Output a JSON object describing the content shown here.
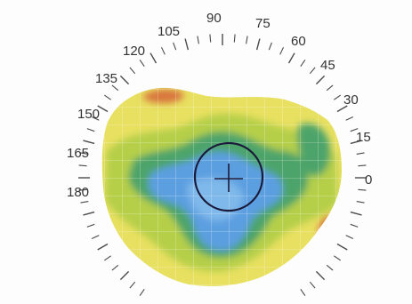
{
  "map": {
    "type": "corneal-topography",
    "colors": {
      "background": "#fdfdfd",
      "yellow": "#e8e060",
      "yellow_green": "#b5cf4a",
      "green": "#4ea46a",
      "blue": "#5b9fe0",
      "blue_light": "#7fb8ea",
      "orange_red": "#d8743c",
      "grid": "#ffffff",
      "reticle": "#1a1a3a",
      "ticks": "#4a4a4a"
    },
    "degree_labels": [
      "90",
      "75",
      "60",
      "45",
      "30",
      "15",
      "0",
      "105",
      "120",
      "135",
      "150",
      "165",
      "180"
    ],
    "reticle": "circle-with-crosshair"
  }
}
